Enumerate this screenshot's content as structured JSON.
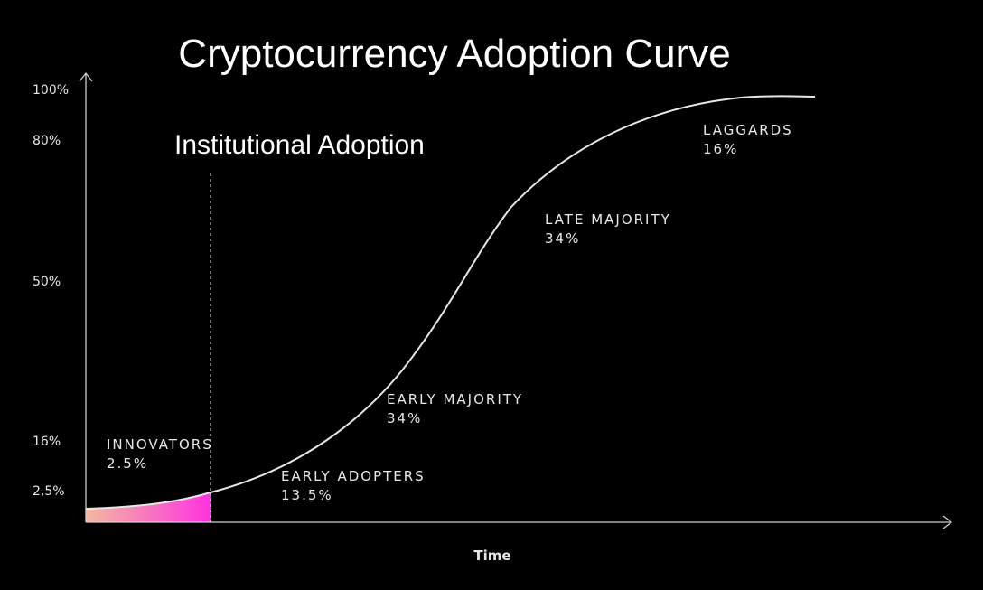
{
  "chart_data": {
    "type": "line",
    "title": "Cryptocurrency Adoption Curve",
    "xlabel": "Time",
    "ylabel": "",
    "y_tick_labels": [
      "100%",
      "80%",
      "50%",
      "16%",
      "2,5%"
    ],
    "y_tick_values": [
      100,
      80,
      50,
      16,
      2.5
    ],
    "marker": {
      "label": "Institutional Adoption"
    },
    "segments": [
      {
        "name": "INNOVATORS",
        "share": "2.5%"
      },
      {
        "name": "EARLY ADOPTERS",
        "share": "13.5%"
      },
      {
        "name": "EARLY MAJORITY",
        "share": "34%"
      },
      {
        "name": "LATE MAJORITY",
        "share": "34%"
      },
      {
        "name": "LAGGARDS",
        "share": "16%"
      }
    ],
    "colors": {
      "background": "#000000",
      "curve": "#e6e6e6",
      "axis": "#cfcfcf",
      "fill_start": "#f2b9a0",
      "fill_end": "#ff33e0"
    }
  }
}
